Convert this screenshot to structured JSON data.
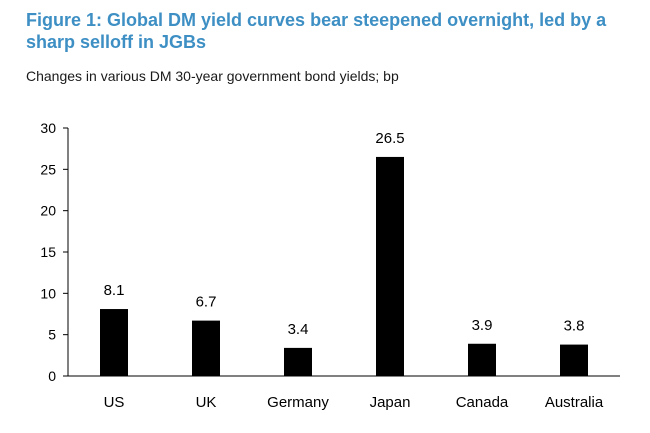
{
  "title": "Figure 1: Global DM yield curves bear steepened overnight, led by a sharp selloff in JGBs",
  "subtitle": "Changes in various DM 30-year government bond yields; bp",
  "chart_data": {
    "type": "bar",
    "categories": [
      "US",
      "UK",
      "Germany",
      "Japan",
      "Canada",
      "Australia"
    ],
    "values": [
      8.1,
      6.7,
      3.4,
      26.5,
      3.9,
      3.8
    ],
    "data_labels": [
      "8.1",
      "6.7",
      "3.4",
      "26.5",
      "3.9",
      "3.8"
    ],
    "yticks": [
      "0",
      "5",
      "10",
      "15",
      "20",
      "25",
      "30"
    ],
    "ylim": [
      0,
      30
    ],
    "grid": false,
    "legend": "none",
    "bar_color": "#000000"
  }
}
